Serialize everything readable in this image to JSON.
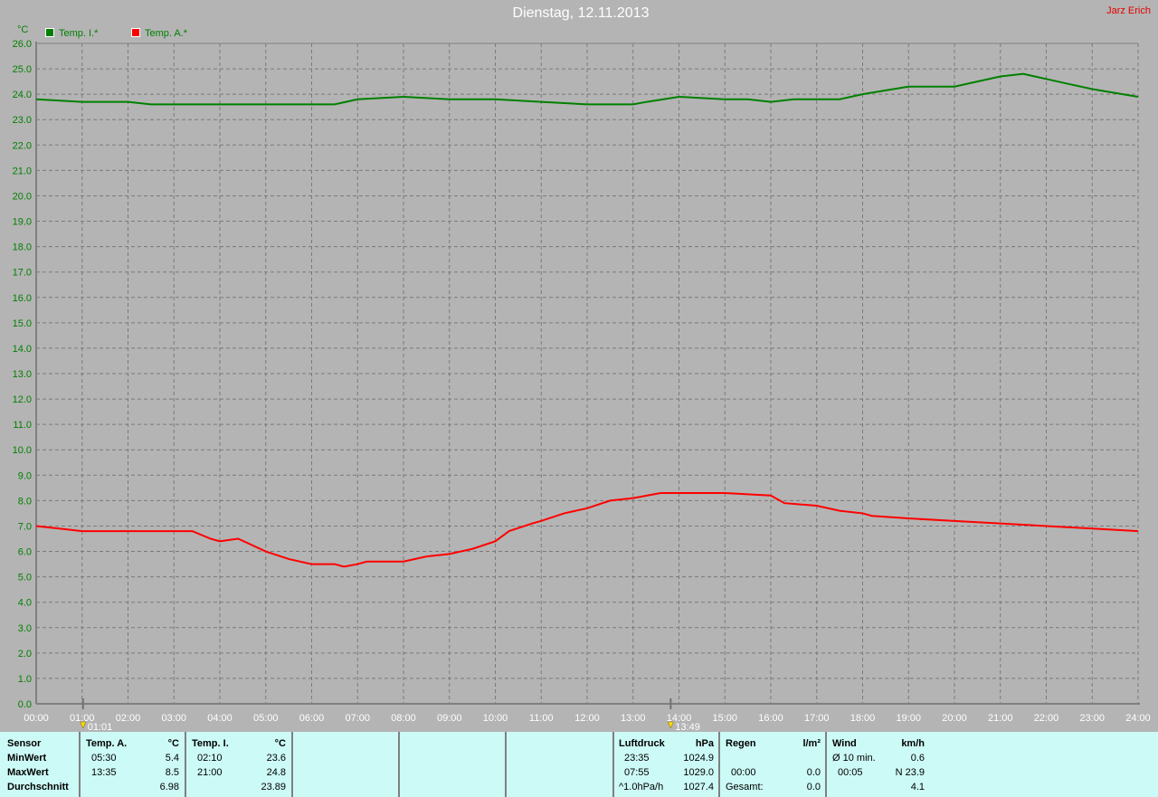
{
  "header": {
    "title": "Dienstag, 12.11.2013",
    "author": "Jarz Erich"
  },
  "chart_data": {
    "type": "line",
    "title": "Dienstag, 12.11.2013",
    "ylabel": "°C",
    "ylim": [
      0,
      26
    ],
    "xlim": [
      "00:00",
      "24:00"
    ],
    "grid": true,
    "legend_placement": "top-left",
    "x_ticks": [
      "00:00",
      "01:00",
      "02:00",
      "03:00",
      "04:00",
      "05:00",
      "06:00",
      "07:00",
      "08:00",
      "09:00",
      "10:00",
      "11:00",
      "12:00",
      "13:00",
      "14:00",
      "15:00",
      "16:00",
      "17:00",
      "18:00",
      "19:00",
      "20:00",
      "21:00",
      "22:00",
      "23:00",
      "24:00"
    ],
    "y_ticks": [
      "0.0",
      "1.0",
      "2.0",
      "3.0",
      "4.0",
      "5.0",
      "6.0",
      "7.0",
      "8.0",
      "9.0",
      "10.0",
      "11.0",
      "12.0",
      "13.0",
      "14.0",
      "15.0",
      "16.0",
      "17.0",
      "18.0",
      "19.0",
      "20.0",
      "21.0",
      "22.0",
      "23.0",
      "24.0",
      "25.0",
      "26.0"
    ],
    "markers": [
      {
        "label": "01:01",
        "hour": 1.02,
        "icon": "sunrise-icon"
      },
      {
        "label": "13:49",
        "hour": 13.82,
        "icon": "sunset-icon"
      }
    ],
    "series": [
      {
        "name": "Temp. I.*",
        "color": "#008000",
        "x": [
          0,
          1,
          2,
          2.5,
          3,
          6.5,
          7,
          8,
          9,
          10,
          11,
          12,
          13,
          13.3,
          14,
          15,
          15.5,
          16,
          16.5,
          17,
          17.5,
          18,
          19,
          20,
          20.5,
          21,
          21.5,
          22,
          22.5,
          23,
          24
        ],
        "y": [
          23.8,
          23.7,
          23.7,
          23.6,
          23.6,
          23.6,
          23.8,
          23.9,
          23.8,
          23.8,
          23.7,
          23.6,
          23.6,
          23.7,
          23.9,
          23.8,
          23.8,
          23.7,
          23.8,
          23.8,
          23.8,
          24.0,
          24.3,
          24.3,
          24.5,
          24.7,
          24.8,
          24.6,
          24.4,
          24.2,
          23.9
        ]
      },
      {
        "name": "Temp. A.*",
        "color": "#ff0000",
        "x": [
          0,
          0.5,
          1,
          2,
          3,
          3.4,
          3.8,
          4,
          4.4,
          5,
          5.5,
          6,
          6.5,
          6.7,
          7,
          7.2,
          8,
          8.5,
          9,
          9.5,
          10,
          10.3,
          10.8,
          11,
          11.5,
          12,
          12.5,
          13,
          13.6,
          14,
          15,
          16,
          16.3,
          17,
          17.5,
          18,
          18.2,
          19,
          20,
          21,
          22,
          23,
          24
        ],
        "y": [
          7.0,
          6.9,
          6.8,
          6.8,
          6.8,
          6.8,
          6.5,
          6.4,
          6.5,
          6.0,
          5.7,
          5.5,
          5.5,
          5.4,
          5.5,
          5.6,
          5.6,
          5.8,
          5.9,
          6.1,
          6.4,
          6.8,
          7.1,
          7.2,
          7.5,
          7.7,
          8.0,
          8.1,
          8.3,
          8.3,
          8.3,
          8.2,
          7.9,
          7.8,
          7.6,
          7.5,
          7.4,
          7.3,
          7.2,
          7.1,
          7.0,
          6.9,
          6.8
        ]
      }
    ]
  },
  "stats": {
    "labels": [
      "Sensor",
      "MinWert",
      "MaxWert",
      "Durchschnitt"
    ],
    "temp_a": {
      "head": "Temp. A.",
      "unit": "°C",
      "min_time": "05:30",
      "min": "5.4",
      "max_time": "13:35",
      "max": "8.5",
      "avg": "6.98"
    },
    "temp_i": {
      "head": "Temp. I.",
      "unit": "°C",
      "min_time": "02:10",
      "min": "23.6",
      "max_time": "21:00",
      "max": "24.8",
      "avg": "23.89"
    },
    "pressure": {
      "head": "Luftdruck",
      "unit": "hPa",
      "min_time": "23:35",
      "min": "1024.9",
      "max_time": "07:55",
      "max": "1029.0",
      "trend": "^1.0hPa/h",
      "avg": "1027.4"
    },
    "rain": {
      "head": "Regen",
      "unit": "l/m²",
      "time": "00:00",
      "value": "0.0",
      "total_label": "Gesamt:",
      "total": "0.0"
    },
    "wind": {
      "head": "Wind",
      "unit": "km/h",
      "avg_label": "Ø 10 min.",
      "avg": "0.6",
      "gust_time": "00:05",
      "gust": "N 23.9",
      "mean": "4.1"
    }
  }
}
